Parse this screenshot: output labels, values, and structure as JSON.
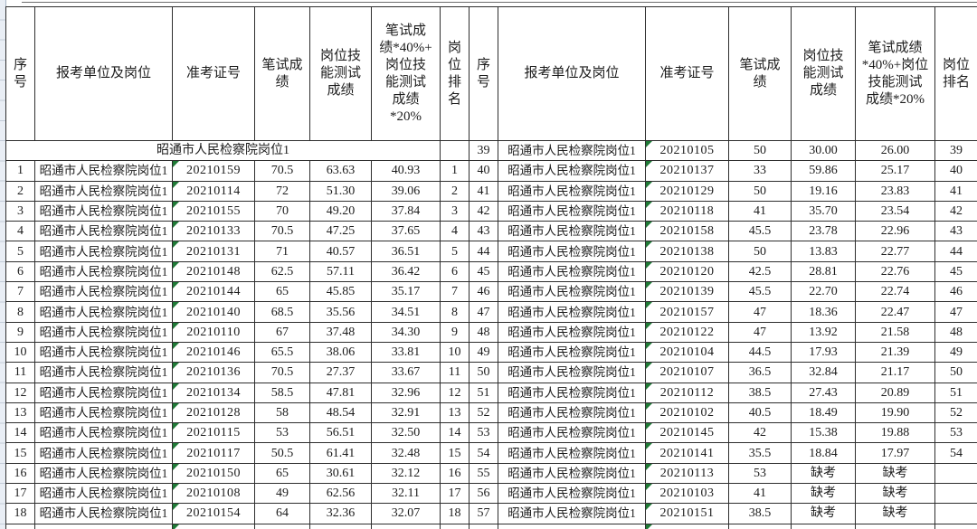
{
  "app": {
    "view": "spreadsheet-score-table",
    "group_title": "昭通市人民检察院岗位1",
    "absent_label": "缺考"
  },
  "colors": {
    "grid_border": "#2e2e2e",
    "text_indicator_green": "#1f7a36",
    "row_header_sliver_bg": "#e9eef5",
    "background": "#ffffff"
  },
  "table": {
    "column_keys": [
      "seq",
      "unit",
      "ticket",
      "written-score",
      "skill-score",
      "combined-score",
      "rank"
    ],
    "headers": {
      "left": [
        "序\n号",
        "报考单位及岗位",
        "准考证号",
        "笔试成\n绩",
        "岗位技\n能测试\n成绩",
        "笔试成\n绩*40%+\n岗位技\n能测试\n成绩\n*20%",
        "岗\n位\n排\n名"
      ],
      "right": [
        "序\n号",
        "报考单位及岗位",
        "准考证号",
        "笔试成\n绩",
        "岗位技\n能测试\n成绩",
        "笔试成绩\n*40%+岗位\n技能测试\n成绩*20%",
        "岗位\n排名"
      ]
    },
    "group_row": {
      "text": "昭通市人民检察院岗位1",
      "rank": ""
    },
    "left_rows": [
      [
        "1",
        "昭通市人民检察院岗位1",
        "20210159",
        "70.5",
        "63.63",
        "40.93",
        "1"
      ],
      [
        "2",
        "昭通市人民检察院岗位1",
        "20210114",
        "72",
        "51.30",
        "39.06",
        "2"
      ],
      [
        "3",
        "昭通市人民检察院岗位1",
        "20210155",
        "70",
        "49.20",
        "37.84",
        "3"
      ],
      [
        "4",
        "昭通市人民检察院岗位1",
        "20210133",
        "70.5",
        "47.25",
        "37.65",
        "4"
      ],
      [
        "5",
        "昭通市人民检察院岗位1",
        "20210131",
        "71",
        "40.57",
        "36.51",
        "5"
      ],
      [
        "6",
        "昭通市人民检察院岗位1",
        "20210148",
        "62.5",
        "57.11",
        "36.42",
        "6"
      ],
      [
        "7",
        "昭通市人民检察院岗位1",
        "20210144",
        "65",
        "45.85",
        "35.17",
        "7"
      ],
      [
        "8",
        "昭通市人民检察院岗位1",
        "20210140",
        "68.5",
        "35.56",
        "34.51",
        "8"
      ],
      [
        "9",
        "昭通市人民检察院岗位1",
        "20210110",
        "67",
        "37.48",
        "34.30",
        "9"
      ],
      [
        "10",
        "昭通市人民检察院岗位1",
        "20210146",
        "65.5",
        "38.06",
        "33.81",
        "10"
      ],
      [
        "11",
        "昭通市人民检察院岗位1",
        "20210136",
        "70.5",
        "27.37",
        "33.67",
        "11"
      ],
      [
        "12",
        "昭通市人民检察院岗位1",
        "20210134",
        "58.5",
        "47.81",
        "32.96",
        "12"
      ],
      [
        "13",
        "昭通市人民检察院岗位1",
        "20210128",
        "58",
        "48.54",
        "32.91",
        "13"
      ],
      [
        "14",
        "昭通市人民检察院岗位1",
        "20210115",
        "53",
        "56.51",
        "32.50",
        "14"
      ],
      [
        "15",
        "昭通市人民检察院岗位1",
        "20210117",
        "50.5",
        "61.41",
        "32.48",
        "15"
      ],
      [
        "16",
        "昭通市人民检察院岗位1",
        "20210150",
        "65",
        "30.61",
        "32.12",
        "16"
      ],
      [
        "17",
        "昭通市人民检察院岗位1",
        "20210108",
        "49",
        "62.56",
        "32.11",
        "17"
      ],
      [
        "18",
        "昭通市人民检察院岗位1",
        "20210154",
        "64",
        "32.36",
        "32.07",
        "18"
      ]
    ],
    "right_rows": [
      [
        "39",
        "昭通市人民检察院岗位1",
        "20210105",
        "50",
        "30.00",
        "26.00",
        "39"
      ],
      [
        "40",
        "昭通市人民检察院岗位1",
        "20210137",
        "33",
        "59.86",
        "25.17",
        "40"
      ],
      [
        "41",
        "昭通市人民检察院岗位1",
        "20210129",
        "50",
        "19.16",
        "23.83",
        "41"
      ],
      [
        "42",
        "昭通市人民检察院岗位1",
        "20210118",
        "41",
        "35.70",
        "23.54",
        "42"
      ],
      [
        "43",
        "昭通市人民检察院岗位1",
        "20210158",
        "45.5",
        "23.78",
        "22.96",
        "43"
      ],
      [
        "44",
        "昭通市人民检察院岗位1",
        "20210138",
        "50",
        "13.83",
        "22.77",
        "44"
      ],
      [
        "45",
        "昭通市人民检察院岗位1",
        "20210120",
        "42.5",
        "28.81",
        "22.76",
        "45"
      ],
      [
        "46",
        "昭通市人民检察院岗位1",
        "20210139",
        "45.5",
        "22.70",
        "22.74",
        "46"
      ],
      [
        "47",
        "昭通市人民检察院岗位1",
        "20210157",
        "47",
        "18.36",
        "22.47",
        "47"
      ],
      [
        "48",
        "昭通市人民检察院岗位1",
        "20210122",
        "47",
        "13.92",
        "21.58",
        "48"
      ],
      [
        "49",
        "昭通市人民检察院岗位1",
        "20210104",
        "44.5",
        "17.93",
        "21.39",
        "49"
      ],
      [
        "50",
        "昭通市人民检察院岗位1",
        "20210107",
        "36.5",
        "32.84",
        "21.17",
        "50"
      ],
      [
        "51",
        "昭通市人民检察院岗位1",
        "20210112",
        "38.5",
        "27.43",
        "20.89",
        "51"
      ],
      [
        "52",
        "昭通市人民检察院岗位1",
        "20210102",
        "40.5",
        "18.49",
        "19.90",
        "52"
      ],
      [
        "53",
        "昭通市人民检察院岗位1",
        "20210145",
        "42",
        "15.38",
        "19.88",
        "53"
      ],
      [
        "54",
        "昭通市人民检察院岗位1",
        "20210141",
        "35.5",
        "18.84",
        "17.97",
        "54"
      ],
      [
        "55",
        "昭通市人民检察院岗位1",
        "20210113",
        "53",
        "缺考",
        "缺考",
        ""
      ],
      [
        "56",
        "昭通市人民检察院岗位1",
        "20210103",
        "41",
        "缺考",
        "缺考",
        ""
      ],
      [
        "57",
        "昭通市人民检察院岗位1",
        "20210151",
        "38.5",
        "缺考",
        "缺考",
        ""
      ]
    ]
  }
}
